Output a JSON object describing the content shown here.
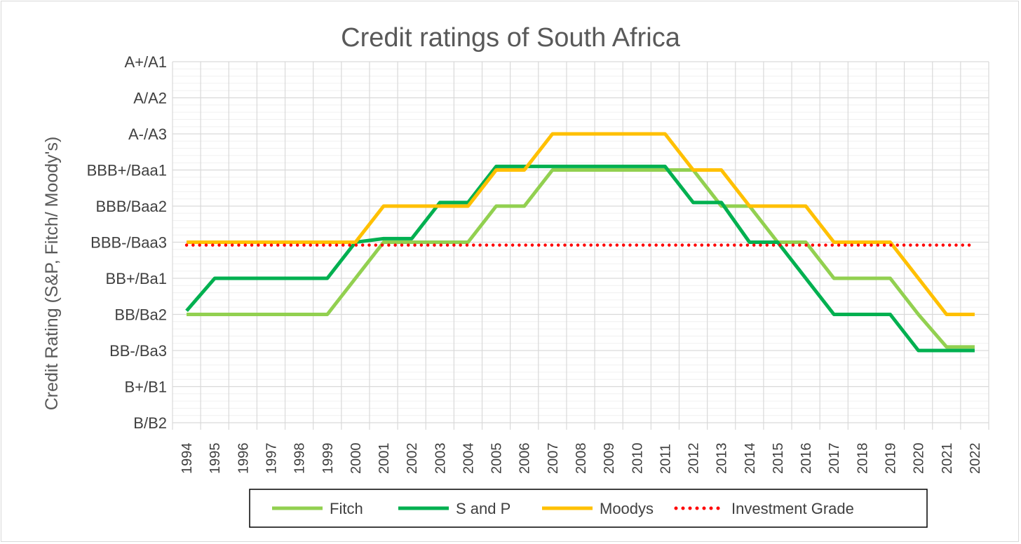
{
  "chart_data": {
    "type": "line",
    "title": "Credit ratings of South Africa",
    "xlabel": "",
    "ylabel": "Credit Rating (S&P, Fitch/ Moody's)",
    "y_scale_labels": [
      "B/B2",
      "B+/B1",
      "BB-/Ba3",
      "BB/Ba2",
      "BB+/Ba1",
      "BBB-/Baa3",
      "BBB/Baa2",
      "BBB+/Baa1",
      "A-/A3",
      "A/A2",
      "A+/A1"
    ],
    "ylim": [
      0,
      10
    ],
    "grid": true,
    "legend_position": "bottom",
    "categories": [
      "1994",
      "1995",
      "1996",
      "1997",
      "1998",
      "1999",
      "2000",
      "2001",
      "2002",
      "2003",
      "2004",
      "2005",
      "2006",
      "2007",
      "2008",
      "2009",
      "2010",
      "2011",
      "2012",
      "2013",
      "2014",
      "2015",
      "2016",
      "2017",
      "2018",
      "2019",
      "2020",
      "2021",
      "2022"
    ],
    "series": [
      {
        "name": "Fitch",
        "color": "#92d050",
        "values": [
          3,
          3,
          3,
          3,
          3,
          3,
          4,
          5,
          5,
          5,
          5,
          6,
          6,
          7,
          7,
          7,
          7,
          7,
          7,
          6,
          6,
          5,
          5,
          4,
          4,
          4,
          3,
          2.1,
          2.1
        ]
      },
      {
        "name": "S and P",
        "color": "#00b050",
        "values": [
          3.1,
          4,
          4,
          4,
          4,
          4,
          5,
          5.1,
          5.1,
          6.1,
          6.1,
          7.1,
          7.1,
          7.1,
          7.1,
          7.1,
          7.1,
          7.1,
          6.1,
          6.1,
          5,
          5,
          4,
          3,
          3,
          3,
          2,
          2,
          2
        ]
      },
      {
        "name": "Moodys",
        "color": "#ffc000",
        "values": [
          5,
          5,
          5,
          5,
          5,
          5,
          5,
          6,
          6,
          6,
          6,
          7,
          7,
          8,
          8,
          8,
          8,
          8,
          7,
          7,
          6,
          6,
          6,
          5,
          5,
          5,
          4,
          3,
          3
        ]
      },
      {
        "name": "Investment Grade",
        "color": "#ff0000",
        "style": "dotted",
        "values": [
          4.92,
          4.92,
          4.92,
          4.92,
          4.92,
          4.92,
          4.92,
          4.92,
          4.92,
          4.92,
          4.92,
          4.92,
          4.92,
          4.92,
          4.92,
          4.92,
          4.92,
          4.92,
          4.92,
          4.92,
          4.92,
          4.92,
          4.92,
          4.92,
          4.92,
          4.92,
          4.92,
          4.92,
          4.92
        ]
      }
    ]
  }
}
